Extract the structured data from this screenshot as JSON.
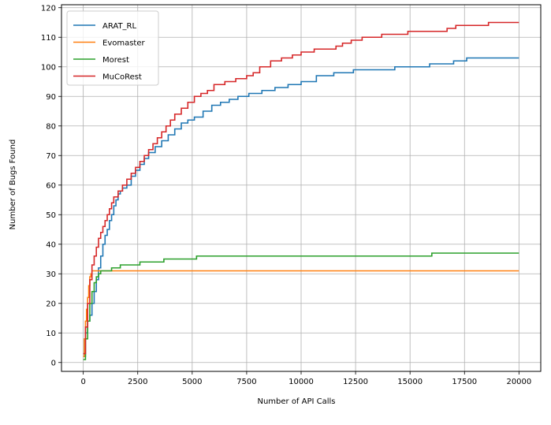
{
  "chart_data": {
    "type": "line",
    "title": "",
    "xlabel": "Number of API Calls",
    "ylabel": "Number of Bugs Found",
    "xlim": [
      -1000,
      21000
    ],
    "ylim": [
      -3,
      121
    ],
    "xticks": [
      0,
      2500,
      5000,
      7500,
      10000,
      12500,
      15000,
      17500,
      20000
    ],
    "yticks": [
      0,
      10,
      20,
      30,
      40,
      50,
      60,
      70,
      80,
      90,
      100,
      110,
      120
    ],
    "grid": true,
    "legend_position": "top-left",
    "step": true,
    "series": [
      {
        "name": "ARAT_RL",
        "color": "#1f77b4",
        "points": [
          [
            0,
            2
          ],
          [
            100,
            10
          ],
          [
            200,
            14
          ],
          [
            300,
            16
          ],
          [
            400,
            20
          ],
          [
            500,
            24
          ],
          [
            600,
            28
          ],
          [
            700,
            32
          ],
          [
            800,
            36
          ],
          [
            900,
            40
          ],
          [
            1000,
            43
          ],
          [
            1100,
            45
          ],
          [
            1200,
            48
          ],
          [
            1300,
            50
          ],
          [
            1400,
            53
          ],
          [
            1500,
            55
          ],
          [
            1600,
            57
          ],
          [
            1700,
            58
          ],
          [
            1800,
            59
          ],
          [
            2000,
            60
          ],
          [
            2200,
            63
          ],
          [
            2400,
            65
          ],
          [
            2600,
            67
          ],
          [
            2800,
            69
          ],
          [
            3000,
            71
          ],
          [
            3300,
            73
          ],
          [
            3600,
            75
          ],
          [
            3900,
            77
          ],
          [
            4200,
            79
          ],
          [
            4500,
            81
          ],
          [
            4800,
            82
          ],
          [
            5100,
            83
          ],
          [
            5500,
            85
          ],
          [
            5900,
            87
          ],
          [
            6300,
            88
          ],
          [
            6700,
            89
          ],
          [
            7100,
            90
          ],
          [
            7600,
            91
          ],
          [
            8200,
            92
          ],
          [
            8800,
            93
          ],
          [
            9400,
            94
          ],
          [
            10000,
            95
          ],
          [
            10700,
            97
          ],
          [
            11500,
            98
          ],
          [
            12400,
            99
          ],
          [
            14300,
            100
          ],
          [
            15900,
            101
          ],
          [
            17000,
            102
          ],
          [
            17600,
            103
          ],
          [
            20000,
            103
          ]
        ]
      },
      {
        "name": "Evomaster",
        "color": "#ff7f0e",
        "points": [
          [
            0,
            2
          ],
          [
            50,
            8
          ],
          [
            100,
            14
          ],
          [
            150,
            18
          ],
          [
            200,
            22
          ],
          [
            250,
            26
          ],
          [
            300,
            29
          ],
          [
            350,
            30
          ],
          [
            400,
            31
          ],
          [
            20000,
            31
          ]
        ]
      },
      {
        "name": "Morest",
        "color": "#2ca02c",
        "points": [
          [
            0,
            1
          ],
          [
            100,
            8
          ],
          [
            200,
            14
          ],
          [
            300,
            20
          ],
          [
            400,
            24
          ],
          [
            500,
            27
          ],
          [
            600,
            29
          ],
          [
            700,
            30
          ],
          [
            800,
            31
          ],
          [
            1300,
            32
          ],
          [
            1700,
            33
          ],
          [
            2600,
            34
          ],
          [
            3700,
            35
          ],
          [
            5200,
            36
          ],
          [
            16000,
            37
          ],
          [
            20000,
            37
          ]
        ]
      },
      {
        "name": "MuCoRest",
        "color": "#d62728",
        "points": [
          [
            0,
            3
          ],
          [
            100,
            12
          ],
          [
            200,
            20
          ],
          [
            300,
            28
          ],
          [
            400,
            33
          ],
          [
            500,
            36
          ],
          [
            600,
            39
          ],
          [
            700,
            42
          ],
          [
            800,
            44
          ],
          [
            900,
            46
          ],
          [
            1000,
            48
          ],
          [
            1100,
            50
          ],
          [
            1200,
            52
          ],
          [
            1300,
            54
          ],
          [
            1400,
            56
          ],
          [
            1600,
            58
          ],
          [
            1800,
            60
          ],
          [
            2000,
            62
          ],
          [
            2200,
            64
          ],
          [
            2400,
            66
          ],
          [
            2600,
            68
          ],
          [
            2800,
            70
          ],
          [
            3000,
            72
          ],
          [
            3200,
            74
          ],
          [
            3400,
            76
          ],
          [
            3600,
            78
          ],
          [
            3800,
            80
          ],
          [
            4000,
            82
          ],
          [
            4200,
            84
          ],
          [
            4500,
            86
          ],
          [
            4800,
            88
          ],
          [
            5100,
            90
          ],
          [
            5400,
            91
          ],
          [
            5700,
            92
          ],
          [
            6000,
            94
          ],
          [
            6500,
            95
          ],
          [
            7000,
            96
          ],
          [
            7500,
            97
          ],
          [
            7800,
            98
          ],
          [
            8100,
            100
          ],
          [
            8600,
            102
          ],
          [
            9100,
            103
          ],
          [
            9600,
            104
          ],
          [
            10000,
            105
          ],
          [
            10600,
            106
          ],
          [
            11600,
            107
          ],
          [
            11900,
            108
          ],
          [
            12300,
            109
          ],
          [
            12800,
            110
          ],
          [
            13700,
            111
          ],
          [
            14900,
            112
          ],
          [
            16700,
            113
          ],
          [
            17100,
            114
          ],
          [
            18600,
            115
          ],
          [
            20000,
            115
          ]
        ]
      }
    ]
  }
}
